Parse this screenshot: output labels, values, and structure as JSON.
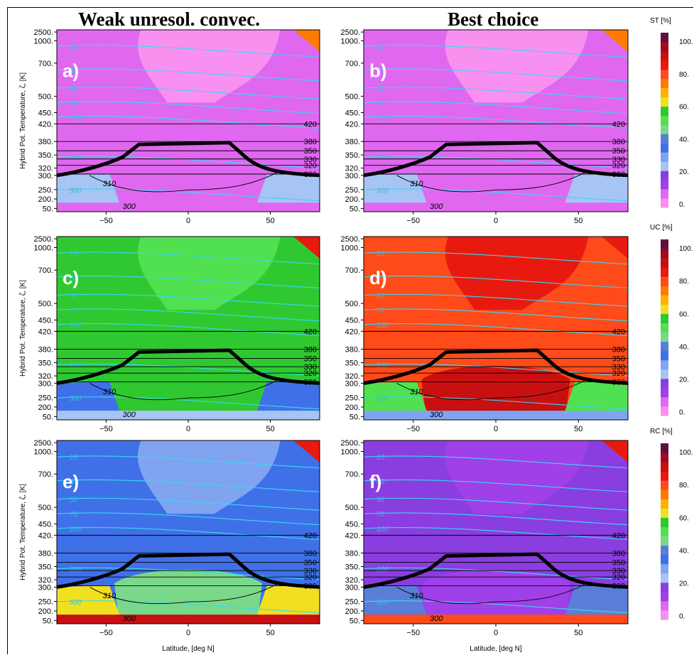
{
  "column_titles": [
    "Weak unresol. convec.",
    "Best choice"
  ],
  "y_axis_label": "Hybrid Pot. Temperature, ζ, [K]",
  "x_axis_label": "Latitude, [deg N]",
  "chart_data": [
    {
      "type": "heatmap",
      "panel": "a)",
      "variable": "ST [%]",
      "column": "Weak unresol. convec.",
      "row": 0,
      "xlim": [
        -80,
        80
      ],
      "xticks": [
        -50,
        0,
        50
      ],
      "yticks": [
        "2500.",
        "1000.",
        "700.",
        "500.",
        "450.",
        "420.",
        "380.",
        "350.",
        "320.",
        "300.",
        "250.",
        "200.",
        "50."
      ],
      "colorbar": {
        "label": "ST [%]",
        "ticks": [
          "100.",
          "80.",
          "60.",
          "40.",
          "20.",
          "0."
        ]
      },
      "dominant_value_pct": 5,
      "isentropes": [
        "420",
        "380",
        "350",
        "330",
        "320",
        "310",
        "300"
      ],
      "concentration_labels": [
        "10",
        "30",
        "50",
        "70",
        "100",
        "200",
        "500"
      ]
    },
    {
      "type": "heatmap",
      "panel": "b)",
      "variable": "ST [%]",
      "column": "Best choice",
      "row": 0,
      "xlim": [
        -80,
        80
      ],
      "xticks": [
        -50,
        0,
        50
      ],
      "dominant_value_pct": 5,
      "isentropes": [
        "420",
        "380",
        "350",
        "330",
        "320",
        "310",
        "300"
      ]
    },
    {
      "type": "heatmap",
      "panel": "c)",
      "variable": "UC [%]",
      "column": "Weak unresol. convec.",
      "row": 1,
      "xlim": [
        -80,
        80
      ],
      "xticks": [
        -50,
        0,
        50
      ],
      "colorbar": {
        "label": "UC [%]",
        "ticks": [
          "100.",
          "80.",
          "60.",
          "40.",
          "20.",
          "0."
        ]
      },
      "dominant_value_pct": 55,
      "isentropes": [
        "420",
        "380",
        "350",
        "330",
        "320",
        "310",
        "300"
      ]
    },
    {
      "type": "heatmap",
      "panel": "d)",
      "variable": "UC [%]",
      "column": "Best choice",
      "row": 1,
      "xlim": [
        -80,
        80
      ],
      "xticks": [
        -50,
        0,
        50
      ],
      "dominant_value_pct": 75,
      "isentropes": [
        "420",
        "380",
        "350",
        "330",
        "320",
        "310",
        "300"
      ]
    },
    {
      "type": "heatmap",
      "panel": "e)",
      "variable": "RC [%]",
      "column": "Weak unresol. convec.",
      "row": 2,
      "xlim": [
        -80,
        80
      ],
      "xticks": [
        -50,
        0,
        50
      ],
      "colorbar": {
        "label": "RC [%]",
        "ticks": [
          "100.",
          "80.",
          "60.",
          "40.",
          "20.",
          "0."
        ]
      },
      "dominant_value_pct": 35,
      "isentropes": [
        "420",
        "380",
        "350",
        "330",
        "320",
        "310",
        "300"
      ]
    },
    {
      "type": "heatmap",
      "panel": "f)",
      "variable": "RC [%]",
      "column": "Best choice",
      "row": 2,
      "xlim": [
        -80,
        80
      ],
      "xticks": [
        -50,
        0,
        50
      ],
      "dominant_value_pct": 15,
      "isentropes": [
        "420",
        "380",
        "350",
        "330",
        "320",
        "310",
        "300"
      ]
    }
  ],
  "colormap": [
    "#f890f0",
    "#e068f0",
    "#a040e8",
    "#8a3ee0",
    "#a6c4f4",
    "#80a4f0",
    "#4070e8",
    "#5a7ed8",
    "#7ad88a",
    "#50e050",
    "#30c830",
    "#f0e020",
    "#ffb000",
    "#ff7a00",
    "#ff4a1a",
    "#e81a10",
    "#c81010",
    "#a00a20",
    "#601040"
  ]
}
